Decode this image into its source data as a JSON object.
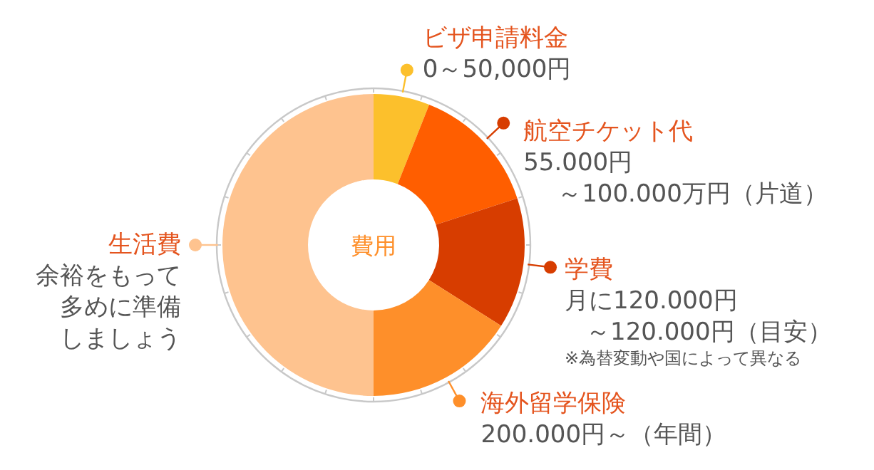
{
  "chart_data": {
    "type": "donut",
    "title": "費用",
    "categories": [
      "ビザ申請料金",
      "航空チケット代",
      "学費",
      "海外留学保険",
      "生活費"
    ],
    "values": [
      6,
      14,
      14,
      16,
      50
    ],
    "colors": [
      "#fcc02c",
      "#ff5e00",
      "#d73d00",
      "#fe8f2a",
      "#fec38f"
    ],
    "legend": "right",
    "annotations": [
      "0～50,000円",
      "55.000円",
      "～100.000万円（片道）",
      "月に120.000円",
      "～120.000円（目安）",
      "※為替変動や国によって異なる",
      "200.000円～（年間）",
      "余裕をもって",
      "多めに準備",
      "しましょう"
    ]
  }
}
